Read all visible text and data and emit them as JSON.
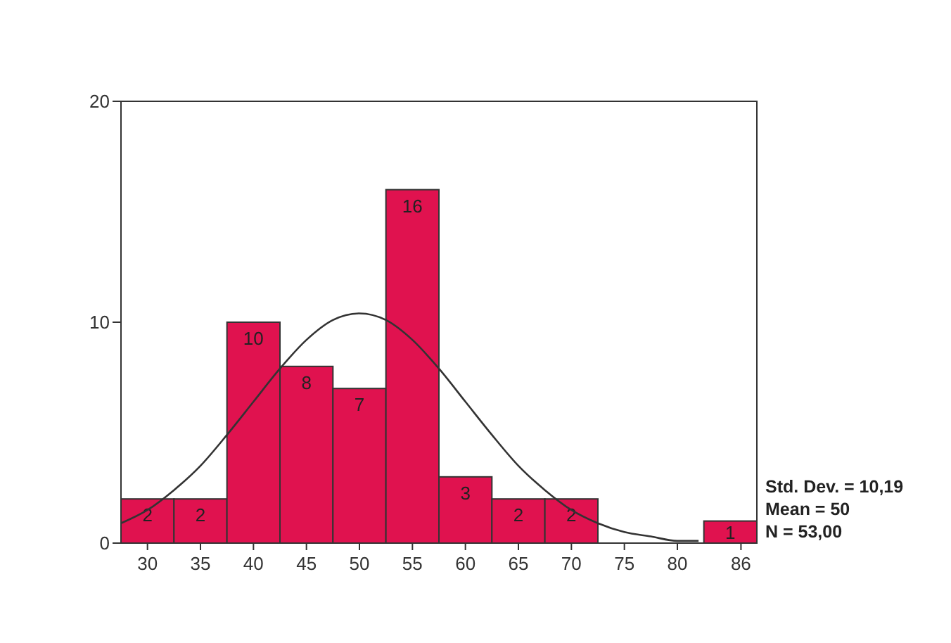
{
  "chart_data": {
    "type": "histogram",
    "bins": [
      27.5,
      32.5,
      37.5,
      42.5,
      47.5,
      52.5,
      57.5,
      62.5,
      67.5,
      72.5,
      77.5,
      82.5,
      87.5
    ],
    "values": [
      2,
      2,
      10,
      8,
      7,
      16,
      3,
      2,
      2,
      0,
      0,
      1
    ],
    "color": "#e0124f",
    "value_labels": [
      "2",
      "2",
      "10",
      "8",
      "7",
      "16",
      "3",
      "2",
      "2",
      null,
      null,
      "1"
    ],
    "xlim": [
      27.5,
      87.5
    ],
    "xticks": [
      30,
      35,
      40,
      45,
      50,
      55,
      60,
      65,
      70,
      75,
      80,
      86
    ],
    "ylim": [
      0,
      20
    ],
    "yticks": [
      0,
      10,
      20
    ],
    "grid": false,
    "series": [
      {
        "type": "line",
        "color": "#333333",
        "x": [
          27.5,
          30,
          32.5,
          35,
          37.5,
          40,
          42.5,
          45,
          47.5,
          50,
          52.5,
          55,
          57.5,
          60,
          62.5,
          65,
          67.5,
          70,
          72.5,
          75,
          77.5,
          80,
          82
        ],
        "values": [
          0.9,
          1.5,
          2.4,
          3.5,
          4.9,
          6.4,
          7.9,
          9.2,
          10.1,
          10.4,
          10.1,
          9.2,
          7.9,
          6.4,
          4.9,
          3.5,
          2.4,
          1.5,
          0.9,
          0.5,
          0.3,
          0.1,
          0.1
        ]
      }
    ],
    "annotations": [
      "Std. Dev. = 10,19",
      "Mean = 50",
      "N = 53,00"
    ]
  }
}
